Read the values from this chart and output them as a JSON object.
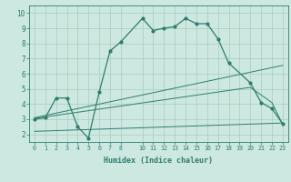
{
  "xlabel": "Humidex (Indice chaleur)",
  "bg_color": "#cce8e0",
  "line_color": "#2e7d6e",
  "grid_color": "#aaccbb",
  "xlim": [
    -0.5,
    23.5
  ],
  "ylim": [
    1.5,
    10.5
  ],
  "yticks": [
    2,
    3,
    4,
    5,
    6,
    7,
    8,
    9,
    10
  ],
  "xticks": [
    0,
    1,
    2,
    3,
    4,
    5,
    6,
    7,
    8,
    10,
    11,
    12,
    13,
    14,
    15,
    16,
    17,
    18,
    19,
    20,
    21,
    22,
    23
  ],
  "line1_x": [
    0,
    1,
    2,
    3,
    4,
    5,
    6,
    7,
    8,
    10,
    11,
    12,
    13,
    14,
    15,
    16,
    17,
    18,
    20,
    21,
    22,
    23
  ],
  "line1_y": [
    3.0,
    3.1,
    4.4,
    4.4,
    2.5,
    1.75,
    4.8,
    7.5,
    8.1,
    9.65,
    8.85,
    9.0,
    9.1,
    9.65,
    9.3,
    9.3,
    8.3,
    6.7,
    5.4,
    4.1,
    3.7,
    2.7
  ],
  "line2_x": [
    0,
    23
  ],
  "line2_y": [
    3.1,
    6.55
  ],
  "line3_x": [
    0,
    23
  ],
  "line3_y": [
    2.2,
    2.75
  ],
  "line4_x": [
    0,
    20,
    22,
    23
  ],
  "line4_y": [
    3.05,
    5.1,
    4.1,
    2.65
  ]
}
